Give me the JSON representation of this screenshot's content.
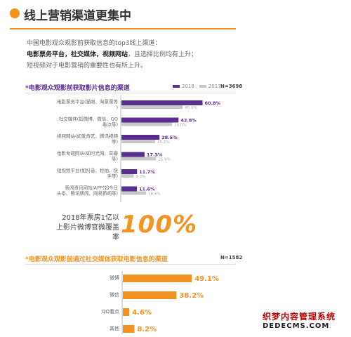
{
  "header": {
    "title": "线上营销渠道更集中"
  },
  "intro": {
    "line1": "中国电影观众观影前获取信息的top3线上渠道：",
    "line2_bold": "电影票务平台，社交媒体，视频网站",
    "line2_rest": "，且选择比例均有上升；",
    "line3": "短视频对于电影营销的重要性也有所上升。"
  },
  "section1": {
    "title": "*电影观众观影前获取影片信息的渠道",
    "n_label": "N=3698"
  },
  "highlight": {
    "note": "2018年票房1亿以上影片微博官微覆盖率",
    "value": "100%"
  },
  "section2": {
    "title": "*电影观众观影前通过社交媒体获取电影信息的渠道",
    "n_label": "N=1582"
  },
  "colors": {
    "purple": "#5a2d91",
    "gray": "#c8c8c8",
    "orange": "#f39322"
  },
  "watermark": {
    "top": "织梦内容管理系统",
    "bottom": "DEDECMS.COM"
  },
  "chart_data": [
    {
      "type": "bar",
      "orientation": "horizontal",
      "title": "*电影观众观影前获取影片信息的渠道",
      "categories": [
        "电影票务平台(猫眼、淘票票等)",
        "社交媒体(如微博、微信、QQ看点等)",
        "视频网站(如爱奇艺、腾讯视频等)",
        "电影专题网站(如时光网、豆瓣等)",
        "短视频平台(如抖音、秒拍、快手等)",
        "新闻资讯网站/APP(如今日头条、腾讯新闻、网易新闻等)"
      ],
      "series": [
        {
          "name": "2018",
          "values": [
            60.8,
            42.8,
            28.5,
            17.3,
            11.7,
            11.6
          ],
          "labels": [
            "60.8%",
            "42.8%",
            "28.5%",
            "17.3%",
            "11.7%",
            "11.6%"
          ]
        },
        {
          "name": "2017",
          "values": [
            45.9,
            38.0,
            25.2,
            25.9,
            9.2,
            18.5
          ],
          "labels": [
            "45.9%",
            "38.0%",
            "25.2%",
            "25.9%",
            "9.2%",
            "18.5%"
          ]
        }
      ],
      "legend": "top-right"
    },
    {
      "type": "bar",
      "orientation": "horizontal",
      "title": "*电影观众观影前通过社交媒体获取电影信息的渠道",
      "categories": [
        "微博",
        "微信",
        "QQ看点",
        "其他"
      ],
      "values": [
        49.1,
        38.2,
        4.6,
        8.2
      ],
      "labels": [
        "49.1%",
        "38.2%",
        "4.6%",
        "8.2%"
      ]
    }
  ]
}
